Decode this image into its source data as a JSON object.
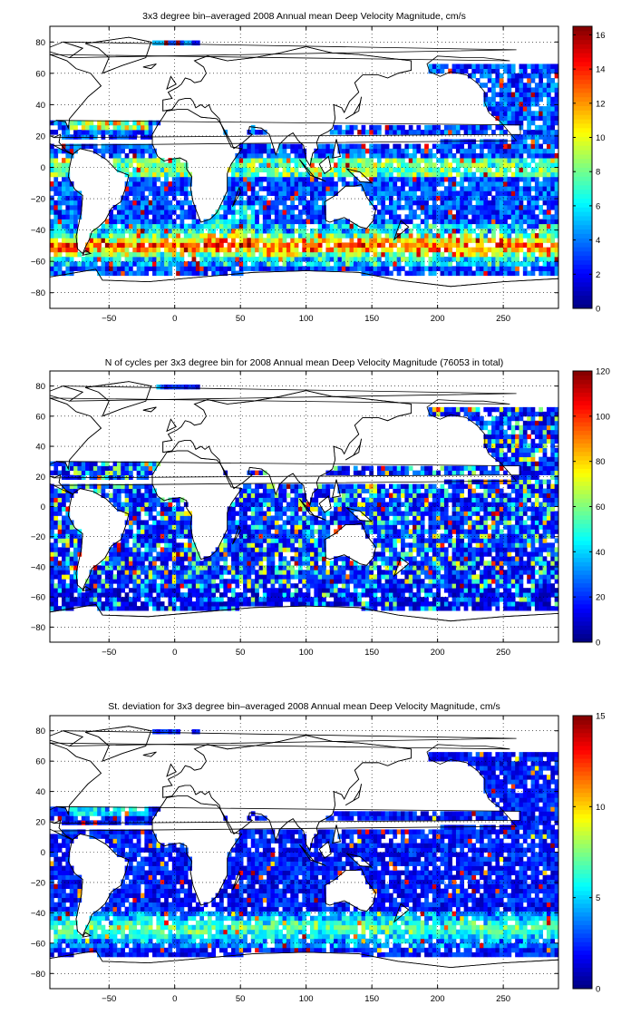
{
  "chart_data": [
    {
      "type": "heatmap",
      "title": "3x3 degree bin–averaged 2008 Annual mean Deep Velocity Magnitude, cm/s",
      "xlim": [
        -95,
        292
      ],
      "ylim": [
        -90,
        90
      ],
      "x_ticks": [
        -50,
        0,
        50,
        100,
        150,
        200,
        250
      ],
      "y_ticks": [
        80,
        60,
        40,
        20,
        0,
        -20,
        -40,
        -60,
        -80
      ],
      "grid": true,
      "colormap": "jet",
      "colorbar_range": [
        0,
        16.5
      ],
      "colorbar_ticks": [
        0,
        2,
        4,
        6,
        8,
        10,
        12,
        14,
        16
      ]
    },
    {
      "type": "heatmap",
      "title": "N of cycles per 3x3 degree bin for 2008 Annual mean Deep Velocity Magnitude (76053 in total)",
      "xlim": [
        -95,
        292
      ],
      "ylim": [
        -90,
        90
      ],
      "x_ticks": [
        -50,
        0,
        50,
        100,
        150,
        200,
        250
      ],
      "y_ticks": [
        80,
        60,
        40,
        20,
        0,
        -20,
        -40,
        -60,
        -80
      ],
      "grid": true,
      "colormap": "jet",
      "colorbar_range": [
        0,
        120
      ],
      "colorbar_ticks": [
        0,
        20,
        40,
        60,
        80,
        100,
        120
      ]
    },
    {
      "type": "heatmap",
      "title": "St. deviation for 3x3 degree bin–averaged 2008 Annual mean Deep Velocity Magnitude, cm/s",
      "xlim": [
        -95,
        292
      ],
      "ylim": [
        -90,
        90
      ],
      "x_ticks": [
        -50,
        0,
        50,
        100,
        150,
        200,
        250
      ],
      "y_ticks": [
        80,
        60,
        40,
        20,
        0,
        -20,
        -40,
        -60,
        -80
      ],
      "grid": true,
      "colormap": "jet",
      "colorbar_range": [
        0,
        15
      ],
      "colorbar_ticks": [
        0,
        5,
        10,
        15
      ]
    }
  ]
}
